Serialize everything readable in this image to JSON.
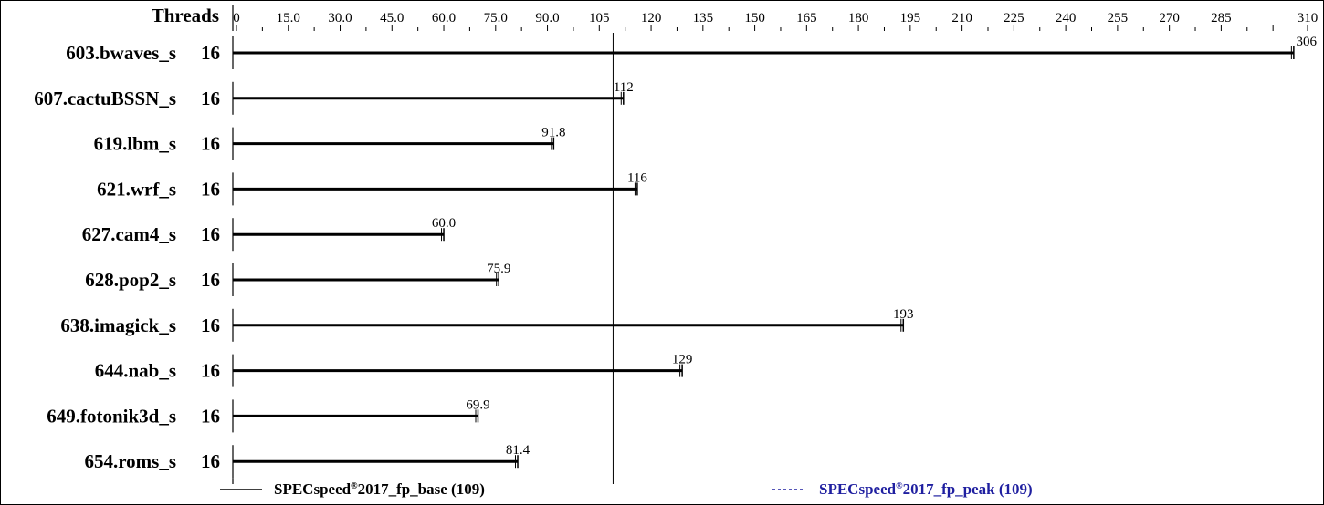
{
  "chart_data": {
    "type": "bar",
    "header_label": "Threads",
    "x_ticks": [
      "0",
      "15.0",
      "30.0",
      "45.0",
      "60.0",
      "75.0",
      "90.0",
      "105",
      "120",
      "135",
      "150",
      "165",
      "180",
      "195",
      "210",
      "225",
      "240",
      "255",
      "270",
      "285",
      "310"
    ],
    "xlim": [
      0,
      310
    ],
    "categories": [
      "603.bwaves_s",
      "607.cactuBSSN_s",
      "619.lbm_s",
      "621.wrf_s",
      "627.cam4_s",
      "628.pop2_s",
      "638.imagick_s",
      "644.nab_s",
      "649.fotonik3d_s",
      "654.roms_s"
    ],
    "threads": [
      "16",
      "16",
      "16",
      "16",
      "16",
      "16",
      "16",
      "16",
      "16",
      "16"
    ],
    "series": [
      {
        "name": "SPECspeed®2017_fp_base (109)",
        "values": [
          306,
          112,
          91.8,
          116,
          60.0,
          75.9,
          193,
          129,
          69.9,
          81.4
        ],
        "value_labels": [
          "306",
          "112",
          "91.8",
          "116",
          "60.0",
          "75.9",
          "193",
          "129",
          "69.9",
          "81.4"
        ],
        "color": "#000000",
        "line_style": "solid"
      }
    ],
    "reference_line": {
      "value": 109,
      "style": "solid-thin"
    },
    "legend": [
      {
        "prefix": "SPECspeed",
        "sup": "®",
        "suffix": "2017_fp_base (109)",
        "color": "#000000",
        "line_style": "solid"
      },
      {
        "prefix": "SPECspeed",
        "sup": "®",
        "suffix": "2017_fp_peak (109)",
        "color": "#1f1fa0",
        "line_style": "dashed"
      }
    ],
    "legend_placement": "bottom",
    "grid": false
  }
}
